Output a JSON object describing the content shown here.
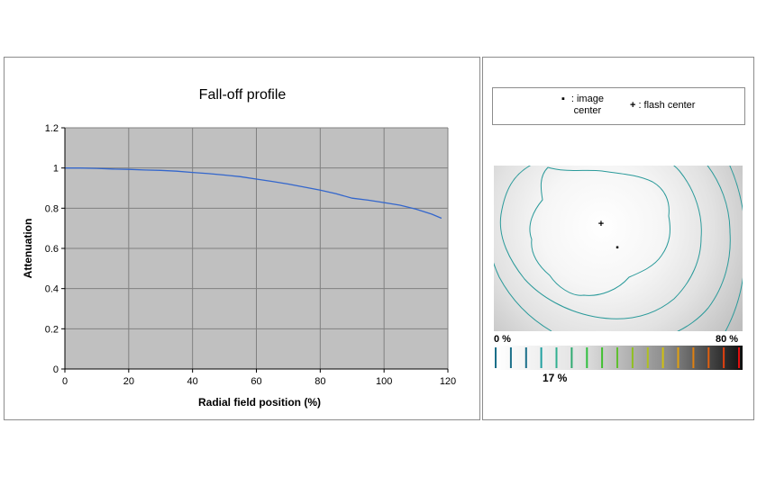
{
  "chart_data": {
    "type": "line",
    "title": "Fall-off profile",
    "xlabel": "Radial field position (%)",
    "ylabel": "Attenuation",
    "xlim": [
      0,
      120
    ],
    "ylim": [
      0,
      1.2
    ],
    "x_ticks": [
      "0",
      "20",
      "40",
      "60",
      "80",
      "100",
      "120"
    ],
    "y_ticks": [
      "0",
      "0.2",
      "0.4",
      "0.6",
      "0.8",
      "1",
      "1.2"
    ],
    "grid": true,
    "plot_background": "#c0c0c0",
    "line_color": "#3366cc",
    "series": [
      {
        "x": [
          0,
          5,
          10,
          15,
          20,
          25,
          30,
          35,
          40,
          45,
          50,
          55,
          60,
          65,
          70,
          75,
          80,
          85,
          90,
          95,
          100,
          105,
          110,
          115,
          118
        ],
        "values": [
          1.0,
          1.0,
          0.998,
          0.995,
          0.993,
          0.99,
          0.988,
          0.984,
          0.978,
          0.972,
          0.965,
          0.957,
          0.945,
          0.933,
          0.92,
          0.905,
          0.89,
          0.872,
          0.85,
          0.84,
          0.828,
          0.815,
          0.795,
          0.77,
          0.75
        ]
      }
    ]
  },
  "legend": {
    "image_center_symbol": "▪",
    "image_center_label": ": image center",
    "flash_center_symbol": "+",
    "flash_center_label": ": flash center"
  },
  "falloff_map": {
    "image_center_marker": "▪",
    "flash_center_marker": "+",
    "contour_color": "#2a9a9a"
  },
  "scale_bar": {
    "min_label": "0 %",
    "max_label": "80 %",
    "value_label": "17 %",
    "value_fraction": 0.1875,
    "tick_colors": [
      "#1a6e88",
      "#1a6e88",
      "#1a6e88",
      "#20a0a0",
      "#30b090",
      "#2faa70",
      "#30c040",
      "#40c030",
      "#60c030",
      "#90c020",
      "#b0c020",
      "#d0c010",
      "#e0a010",
      "#e08010",
      "#e06010",
      "#e04010",
      "#e01010"
    ]
  }
}
